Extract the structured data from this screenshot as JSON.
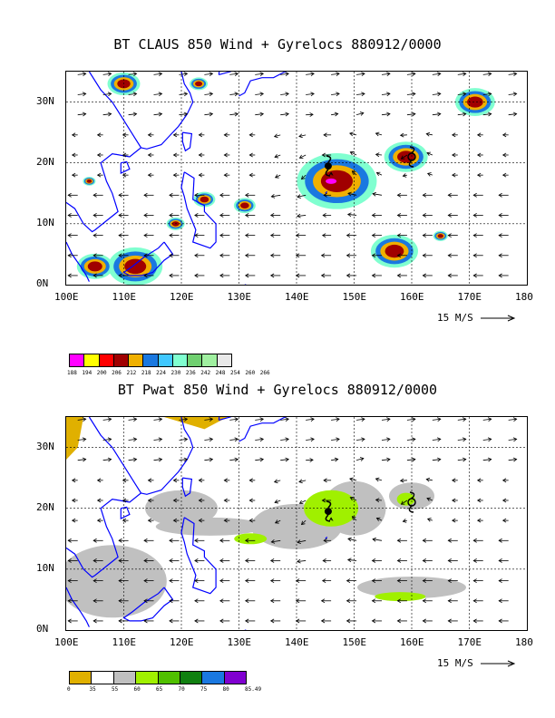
{
  "panel1": {
    "title": "BT CLAUS 850 Wind + Gyrelocs 880912/0000",
    "scale_label": "15 M/S",
    "colorbar": {
      "labels": [
        "188",
        "194",
        "200",
        "206",
        "212",
        "218",
        "224",
        "230",
        "236",
        "242",
        "248",
        "254",
        "260",
        "266"
      ],
      "colors": [
        "#ff00ff",
        "#ffff00",
        "#ff0000",
        "#a00000",
        "#f0b000",
        "#1a78e0",
        "#40c8ff",
        "#80ffd0",
        "#70d070",
        "#a0f0a0",
        "#e8e8e8"
      ]
    }
  },
  "panel2": {
    "title": "BT Pwat 850 Wind + Gyrelocs 880912/0000",
    "scale_label": "15 M/S",
    "colorbar": {
      "labels": [
        "0",
        "35",
        "55",
        "60",
        "65",
        "70",
        "75",
        "80",
        "85.49"
      ],
      "colors": [
        "#e0b000",
        "#ffffff",
        "#c0c0c0",
        "#a0f000",
        "#50c000",
        "#108010",
        "#1a78e0",
        "#8000d0"
      ]
    }
  },
  "axes": {
    "lon_labels": [
      "100E",
      "110E",
      "120E",
      "130E",
      "140E",
      "150E",
      "160E",
      "170E",
      "180"
    ],
    "lat_labels": [
      "0N",
      "10N",
      "20N",
      "30N"
    ]
  },
  "map_colors": {
    "coast": "#0000ff",
    "grid": "#000000",
    "arrow": "#000000"
  }
}
